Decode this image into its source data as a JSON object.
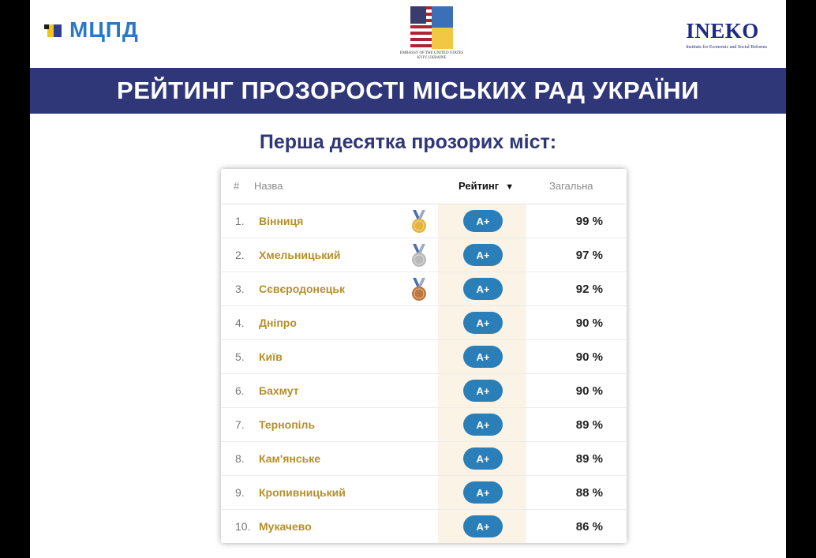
{
  "header": {
    "mcpd_logo": "МЦПД",
    "embassy_caption": "EMBASSY OF THE UNITED STATES KYIV, UKRAINE",
    "ineko_logo": "INEKO",
    "ineko_caption": "Institute for Economic and Social Reforms"
  },
  "banner_title": "РЕЙТИНГ ПРОЗОРОСТІ МІСЬКИХ РАД УКРАЇНИ",
  "subtitle": "Перша десятка прозорих міст:",
  "table": {
    "headers": {
      "rank": "#",
      "name": "Назва",
      "rating": "Рейтинг",
      "total": "Загальна"
    },
    "sort_indicator": "▼",
    "rows": [
      {
        "rank": "1.",
        "city": "Вінниця",
        "grade": "A+",
        "total": "99 %",
        "medal": "gold"
      },
      {
        "rank": "2.",
        "city": "Хмельницький",
        "grade": "A+",
        "total": "97 %",
        "medal": "silver"
      },
      {
        "rank": "3.",
        "city": "Сєвєродонецьк",
        "grade": "A+",
        "total": "92 %",
        "medal": "bronze"
      },
      {
        "rank": "4.",
        "city": "Дніпро",
        "grade": "A+",
        "total": "90 %"
      },
      {
        "rank": "5.",
        "city": "Київ",
        "grade": "A+",
        "total": "90 %"
      },
      {
        "rank": "6.",
        "city": "Бахмут",
        "grade": "A+",
        "total": "90 %"
      },
      {
        "rank": "7.",
        "city": "Тернопіль",
        "grade": "A+",
        "total": "89 %"
      },
      {
        "rank": "8.",
        "city": "Кам'янське",
        "grade": "A+",
        "total": "89 %"
      },
      {
        "rank": "9.",
        "city": "Кропивницький",
        "grade": "A+",
        "total": "88 %"
      },
      {
        "rank": "10.",
        "city": "Мукачево",
        "grade": "A+",
        "total": "86 %"
      }
    ]
  },
  "colors": {
    "banner": "#2f3779",
    "grade_pill": "#2a7fb8",
    "city_text": "#b58f2b",
    "medal_gold": "#e2b43a",
    "medal_silver": "#b9b9b9",
    "medal_bronze": "#c0763a"
  }
}
